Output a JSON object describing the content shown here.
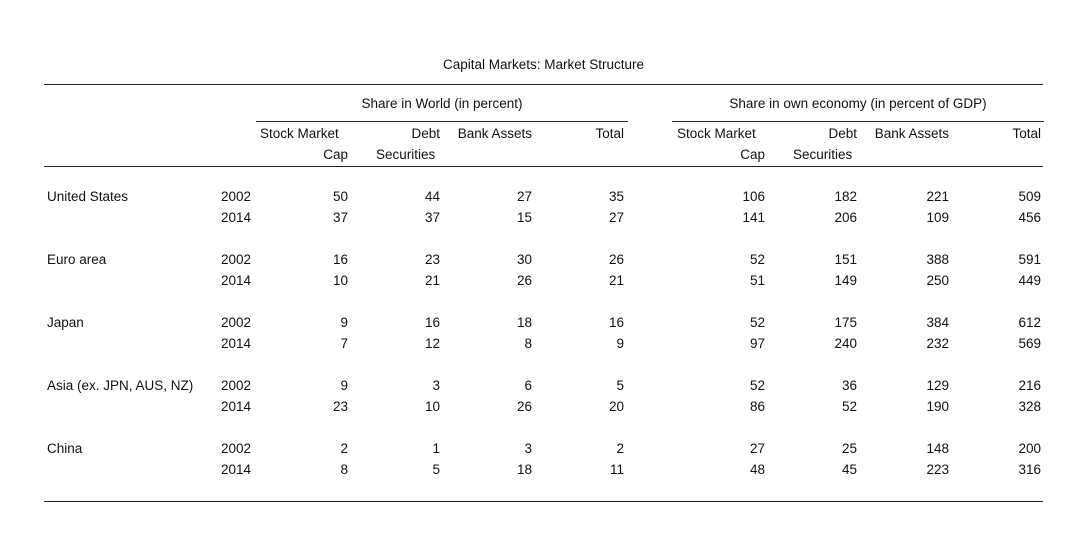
{
  "title": "Capital Markets: Market Structure",
  "groups": {
    "world": "Share in World (in percent)",
    "economy": "Share in own economy (in percent of GDP)"
  },
  "columns": {
    "world": [
      {
        "line1": "Stock Market",
        "line2": "Cap"
      },
      {
        "line1": "Debt",
        "line2": "Securities"
      },
      {
        "line1": "Bank Assets",
        "line2": ""
      },
      {
        "line1": "Total",
        "line2": ""
      }
    ],
    "economy": [
      {
        "line1": "Stock Market",
        "line2": "Cap"
      },
      {
        "line1": "Debt",
        "line2": "Securities"
      },
      {
        "line1": "Bank Assets",
        "line2": ""
      },
      {
        "line1": "Total",
        "line2": ""
      }
    ]
  },
  "regions": [
    {
      "name": "United States",
      "rows": [
        {
          "year": "2002",
          "world": [
            "50",
            "44",
            "27",
            "35"
          ],
          "economy": [
            "106",
            "182",
            "221",
            "509"
          ]
        },
        {
          "year": "2014",
          "world": [
            "37",
            "37",
            "15",
            "27"
          ],
          "economy": [
            "141",
            "206",
            "109",
            "456"
          ]
        }
      ]
    },
    {
      "name": "Euro area",
      "rows": [
        {
          "year": "2002",
          "world": [
            "16",
            "23",
            "30",
            "26"
          ],
          "economy": [
            "52",
            "151",
            "388",
            "591"
          ]
        },
        {
          "year": "2014",
          "world": [
            "10",
            "21",
            "26",
            "21"
          ],
          "economy": [
            "51",
            "149",
            "250",
            "449"
          ]
        }
      ]
    },
    {
      "name": "Japan",
      "rows": [
        {
          "year": "2002",
          "world": [
            "9",
            "16",
            "18",
            "16"
          ],
          "economy": [
            "52",
            "175",
            "384",
            "612"
          ]
        },
        {
          "year": "2014",
          "world": [
            "7",
            "12",
            "8",
            "9"
          ],
          "economy": [
            "97",
            "240",
            "232",
            "569"
          ]
        }
      ]
    },
    {
      "name": "Asia (ex. JPN, AUS, NZ)",
      "rows": [
        {
          "year": "2002",
          "world": [
            "9",
            "3",
            "6",
            "5"
          ],
          "economy": [
            "52",
            "36",
            "129",
            "216"
          ]
        },
        {
          "year": "2014",
          "world": [
            "23",
            "10",
            "26",
            "20"
          ],
          "economy": [
            "86",
            "52",
            "190",
            "328"
          ]
        }
      ]
    },
    {
      "name": "China",
      "rows": [
        {
          "year": "2002",
          "world": [
            "2",
            "1",
            "3",
            "2"
          ],
          "economy": [
            "27",
            "25",
            "148",
            "200"
          ]
        },
        {
          "year": "2014",
          "world": [
            "8",
            "5",
            "18",
            "11"
          ],
          "economy": [
            "48",
            "45",
            "223",
            "316"
          ]
        }
      ]
    }
  ]
}
